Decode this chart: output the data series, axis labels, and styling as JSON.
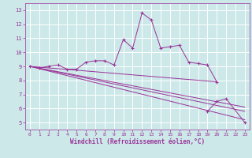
{
  "line_jagged": {
    "x": [
      0,
      1,
      2,
      3,
      4,
      5,
      6,
      7,
      8,
      9,
      10,
      11,
      12,
      13,
      14,
      15,
      16,
      17,
      18,
      19,
      20,
      21,
      22,
      23
    ],
    "y": [
      9.0,
      8.9,
      9.0,
      9.1,
      8.8,
      8.8,
      9.3,
      9.4,
      9.4,
      9.1,
      10.9,
      10.3,
      12.8,
      12.3,
      10.3,
      10.4,
      10.5,
      9.3,
      9.2,
      9.1,
      7.9,
      null,
      null,
      null
    ]
  },
  "line_diag1": {
    "x": [
      0,
      20
    ],
    "y": [
      9.0,
      7.9
    ]
  },
  "line_diag2": {
    "x": [
      0,
      23
    ],
    "y": [
      9.0,
      6.1
    ]
  },
  "line_diag3": {
    "x": [
      0,
      23
    ],
    "y": [
      9.0,
      5.8
    ]
  },
  "line_diag4": {
    "x": [
      0,
      23
    ],
    "y": [
      9.0,
      5.2
    ]
  },
  "line_last": {
    "x": [
      19,
      20,
      21,
      22,
      23
    ],
    "y": [
      5.8,
      6.5,
      6.7,
      null,
      5.0
    ]
  },
  "line_color": "#993399",
  "bg_color": "#cce8e8",
  "grid_color": "#ffffff",
  "xlabel": "Windchill (Refroidissement éolien,°C)",
  "ylim": [
    4.5,
    13.5
  ],
  "xlim": [
    -0.5,
    23.5
  ],
  "yticks": [
    5,
    6,
    7,
    8,
    9,
    10,
    11,
    12,
    13
  ],
  "xticks": [
    0,
    1,
    2,
    3,
    4,
    5,
    6,
    7,
    8,
    9,
    10,
    11,
    12,
    13,
    14,
    15,
    16,
    17,
    18,
    19,
    20,
    21,
    22,
    23
  ]
}
